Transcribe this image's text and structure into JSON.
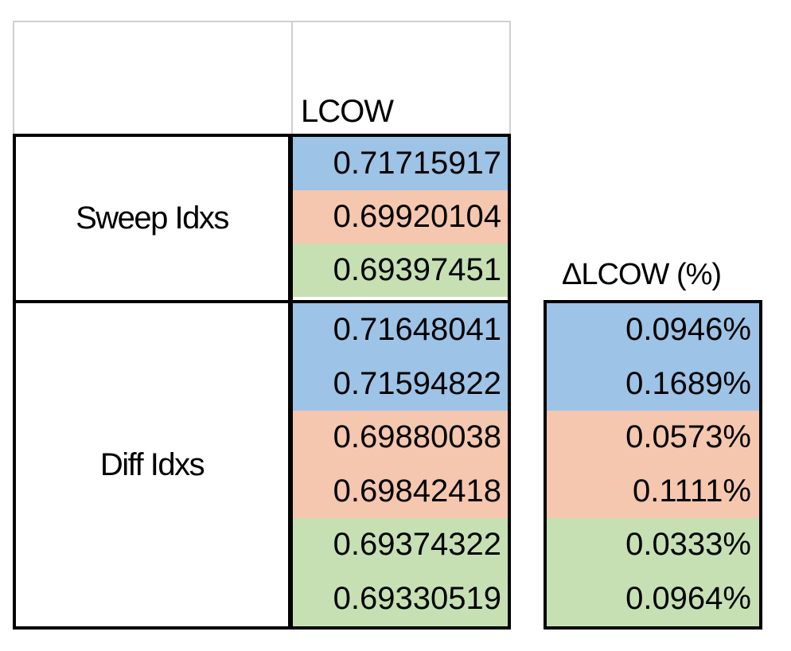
{
  "colors": {
    "blue": "#9dc3e6",
    "orange": "#f4c7ae",
    "green": "#c6e0b4"
  },
  "header": {
    "lcow": "LCOW"
  },
  "groups": [
    {
      "label": "Sweep Idxs",
      "rows": [
        {
          "value": "0.71715917",
          "color": "blue"
        },
        {
          "value": "0.69920104",
          "color": "orange"
        },
        {
          "value": "0.69397451",
          "color": "green"
        }
      ]
    },
    {
      "label": "Diff Idxs",
      "rows": [
        {
          "value": "0.71648041",
          "color": "blue"
        },
        {
          "value": "0.71594822",
          "color": "blue"
        },
        {
          "value": "0.69880038",
          "color": "orange"
        },
        {
          "value": "0.69842418",
          "color": "orange"
        },
        {
          "value": "0.69374322",
          "color": "green"
        },
        {
          "value": "0.69330519",
          "color": "green"
        }
      ]
    }
  ],
  "delta": {
    "title": "ΔLCOW (%)",
    "rows": [
      {
        "value": "0.0946%",
        "color": "blue"
      },
      {
        "value": "0.1689%",
        "color": "blue"
      },
      {
        "value": "0.0573%",
        "color": "orange"
      },
      {
        "value": "0.1111%",
        "color": "orange"
      },
      {
        "value": "0.0333%",
        "color": "green"
      },
      {
        "value": "0.0964%",
        "color": "green"
      }
    ]
  }
}
